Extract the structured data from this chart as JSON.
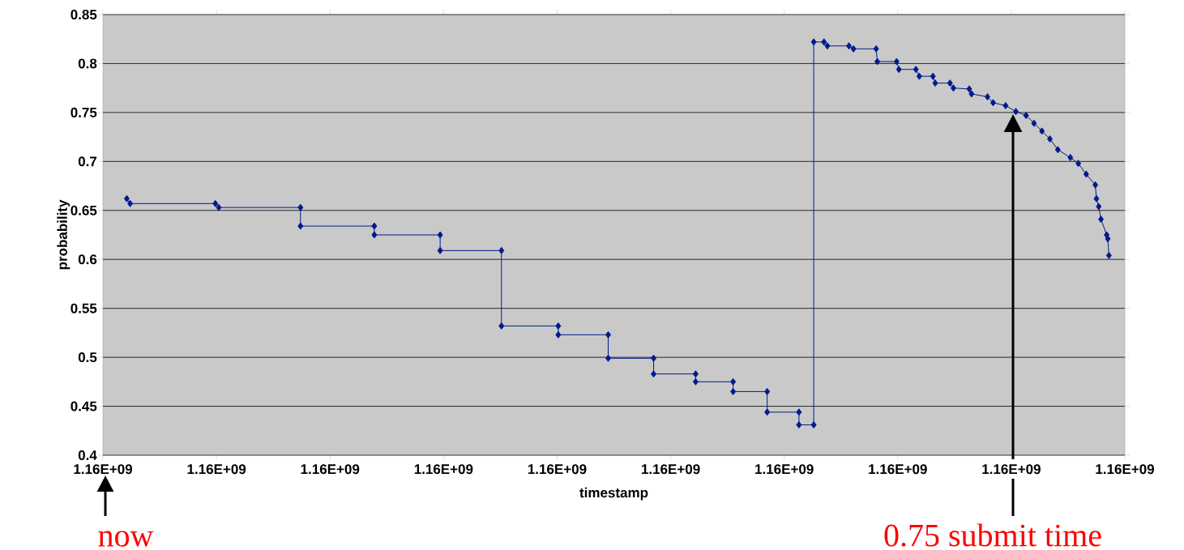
{
  "chart_data": {
    "type": "line",
    "xlabel": "timestamp",
    "ylabel": "probability",
    "xlim": [
      1155600000,
      1164600000
    ],
    "ylim": [
      0.4,
      0.85
    ],
    "xticks": [
      {
        "value": 1155600000,
        "label": "1.16E+09"
      },
      {
        "value": 1156600000,
        "label": "1.16E+09"
      },
      {
        "value": 1157600000,
        "label": "1.16E+09"
      },
      {
        "value": 1158600000,
        "label": "1.16E+09"
      },
      {
        "value": 1159600000,
        "label": "1.16E+09"
      },
      {
        "value": 1160600000,
        "label": "1.16E+09"
      },
      {
        "value": 1161600000,
        "label": "1.16E+09"
      },
      {
        "value": 1162600000,
        "label": "1.16E+09"
      },
      {
        "value": 1163600000,
        "label": "1.16E+09"
      },
      {
        "value": 1164600000,
        "label": "1.16E+09"
      }
    ],
    "yticks": [
      0.4,
      0.45,
      0.5,
      0.55,
      0.6,
      0.65,
      0.7,
      0.75,
      0.8,
      0.85
    ],
    "grid": "y",
    "marker": "diamond",
    "line_style": "solid",
    "series": [
      {
        "color": "#001a8f",
        "x": [
          1155810000,
          1155840000,
          1156590000,
          1156620000,
          1157340000,
          1157340000,
          1157990000,
          1157990000,
          1158570000,
          1158570000,
          1159110000,
          1159110000,
          1159610000,
          1159610000,
          1160050000,
          1160050000,
          1160450000,
          1160450000,
          1160820000,
          1160820000,
          1161150000,
          1161150000,
          1161450000,
          1161450000,
          1161730000,
          1161730000,
          1161860000,
          1161860000,
          1161950000,
          1161980000,
          1162170000,
          1162210000,
          1162410000,
          1162420000,
          1162590000,
          1162610000,
          1162760000,
          1162790000,
          1162910000,
          1162930000,
          1163060000,
          1163090000,
          1163230000,
          1163250000,
          1163390000,
          1163440000,
          1163550000,
          1163640000,
          1163730000,
          1163800000,
          1163870000,
          1163940000,
          1164010000,
          1164120000,
          1164190000,
          1164260000,
          1164340000,
          1164350000,
          1164370000,
          1164390000,
          1164440000,
          1164450000,
          1164460000
        ],
        "values": [
          0.662,
          0.657,
          0.657,
          0.653,
          0.653,
          0.634,
          0.634,
          0.625,
          0.625,
          0.609,
          0.609,
          0.532,
          0.532,
          0.523,
          0.523,
          0.499,
          0.499,
          0.483,
          0.483,
          0.475,
          0.475,
          0.465,
          0.465,
          0.444,
          0.444,
          0.431,
          0.431,
          0.822,
          0.822,
          0.818,
          0.818,
          0.815,
          0.815,
          0.802,
          0.802,
          0.794,
          0.794,
          0.787,
          0.787,
          0.78,
          0.78,
          0.775,
          0.774,
          0.769,
          0.766,
          0.76,
          0.757,
          0.751,
          0.747,
          0.739,
          0.731,
          0.723,
          0.712,
          0.704,
          0.698,
          0.687,
          0.676,
          0.662,
          0.654,
          0.641,
          0.625,
          0.621,
          0.604
        ]
      }
    ],
    "annotations": [
      "now",
      "0.75 submit time"
    ]
  }
}
